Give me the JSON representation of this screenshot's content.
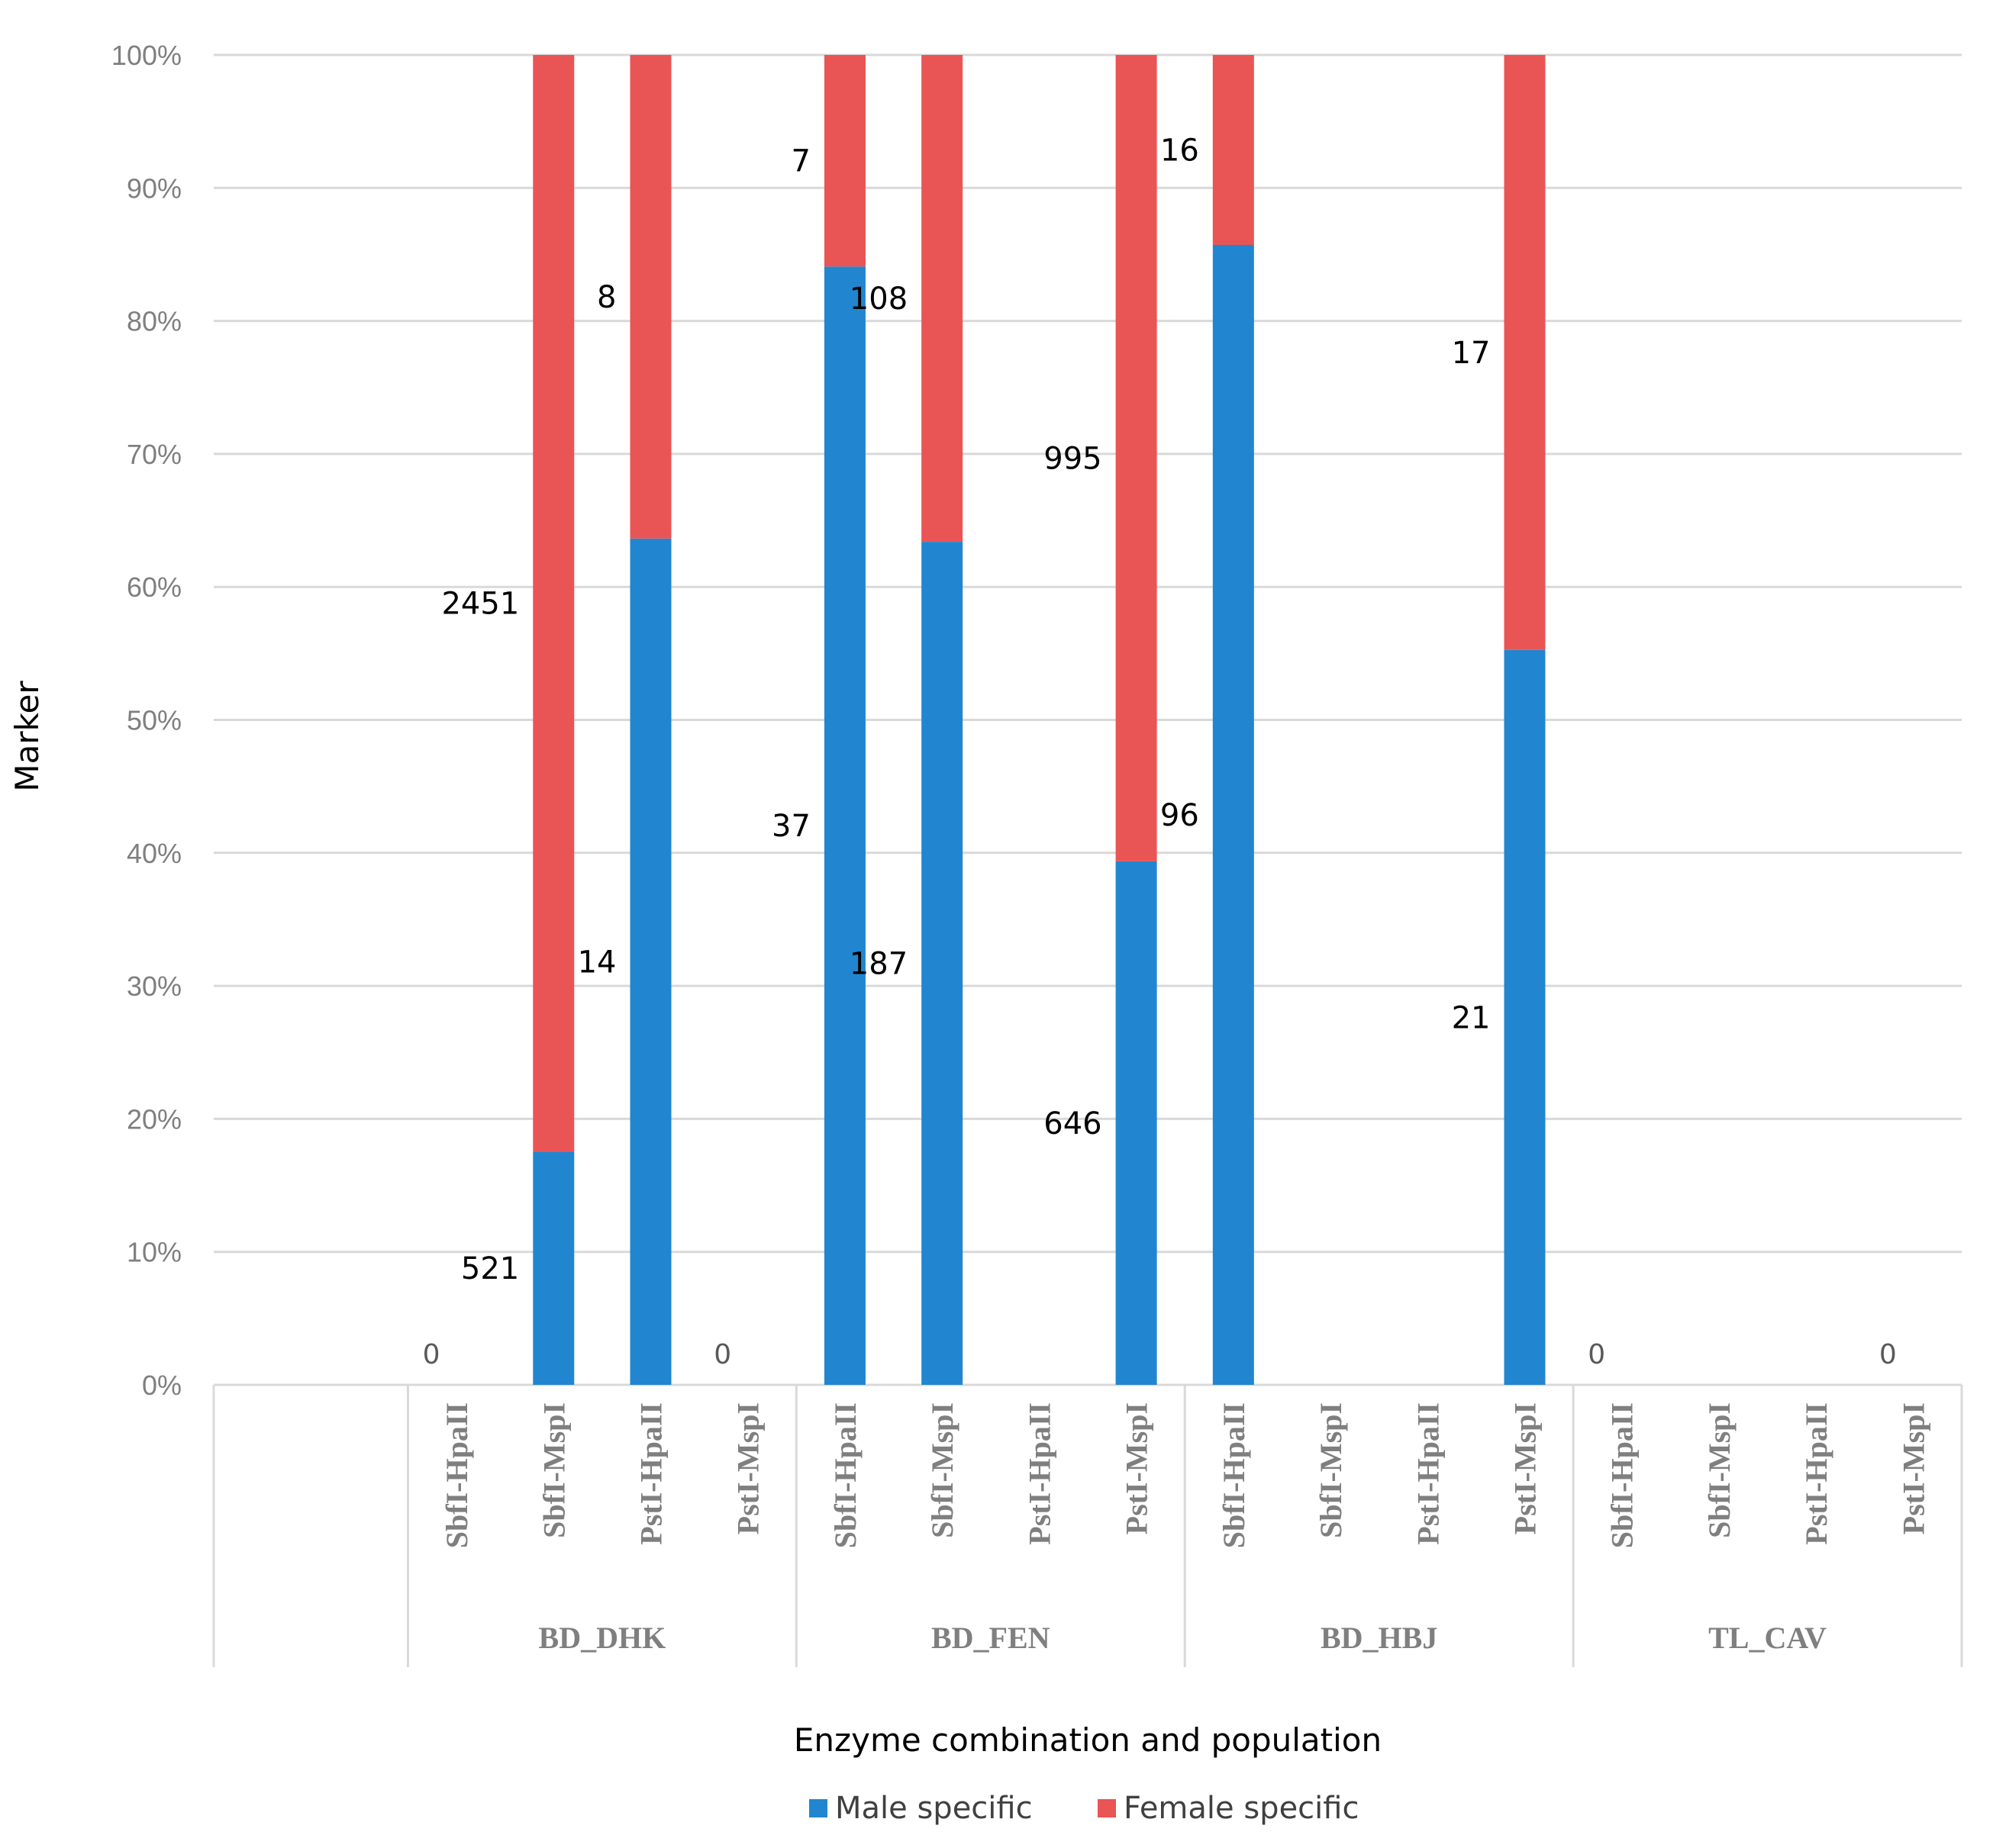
{
  "chart_data": {
    "type": "bar",
    "stacked": "percent",
    "xlabel": "Enzyme combination and population",
    "ylabel": "Marker",
    "ylim": [
      0,
      100
    ],
    "yticks": [
      "0%",
      "10%",
      "20%",
      "30%",
      "40%",
      "50%",
      "60%",
      "70%",
      "80%",
      "90%",
      "100%"
    ],
    "groups": [
      "BD_DHK",
      "BD_FEN",
      "BD_HBJ",
      "TL_CAV"
    ],
    "categories": [
      "SbfI-HpaII",
      "SbfI-MspI",
      "PstI-HpaII",
      "PstI-MspI"
    ],
    "series": [
      {
        "name": "Male specific",
        "color": "#2186cf",
        "values": [
          [
            0,
            521,
            14,
            0
          ],
          [
            37,
            187,
            null,
            646
          ],
          [
            96,
            null,
            null,
            21
          ],
          [
            0,
            null,
            null,
            0
          ]
        ],
        "labels": [
          [
            "0",
            "521",
            "14",
            "0"
          ],
          [
            "37",
            "187",
            "",
            "646"
          ],
          [
            "96",
            "",
            "",
            "21"
          ],
          [
            "0",
            "",
            "",
            "0"
          ]
        ]
      },
      {
        "name": "Female specific",
        "color": "#e95455",
        "values": [
          [
            0,
            2451,
            8,
            0
          ],
          [
            7,
            108,
            null,
            995
          ],
          [
            16,
            null,
            null,
            17
          ],
          [
            0,
            null,
            null,
            0
          ]
        ],
        "labels": [
          [
            "",
            "2451",
            "8",
            ""
          ],
          [
            "7",
            "108",
            "",
            "995"
          ],
          [
            "16",
            "",
            "",
            "17"
          ],
          [
            "",
            "",
            "",
            ""
          ]
        ]
      }
    ],
    "legend": "bottom"
  }
}
